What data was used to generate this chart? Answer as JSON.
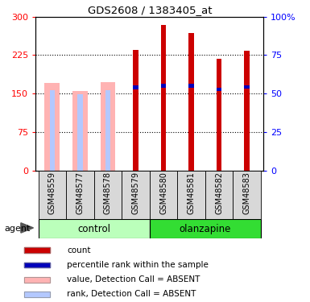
{
  "title": "GDS2608 / 1383405_at",
  "samples": [
    "GSM48559",
    "GSM48577",
    "GSM48578",
    "GSM48579",
    "GSM48580",
    "GSM48581",
    "GSM48582",
    "GSM48583"
  ],
  "value_bars": [
    170,
    155,
    172,
    0,
    0,
    0,
    0,
    0
  ],
  "rank_bars": [
    157,
    149,
    157,
    0,
    0,
    0,
    0,
    0
  ],
  "count_bars": [
    0,
    0,
    0,
    235,
    283,
    268,
    218,
    234
  ],
  "percentile_bars": [
    0,
    0,
    0,
    162,
    165,
    165,
    158,
    163
  ],
  "absent": [
    true,
    true,
    true,
    false,
    false,
    false,
    false,
    false
  ],
  "ylim_left": [
    0,
    300
  ],
  "ylim_right": [
    0,
    100
  ],
  "yticks_left": [
    0,
    75,
    150,
    225,
    300
  ],
  "yticks_right": [
    0,
    25,
    50,
    75,
    100
  ],
  "ytick_labels_left": [
    "0",
    "75",
    "150",
    "225",
    "300"
  ],
  "ytick_labels_right": [
    "0",
    "25",
    "50",
    "75",
    "100%"
  ],
  "bar_width": 0.55,
  "color_count": "#cc0000",
  "color_percentile": "#0000bb",
  "color_value_absent": "#ffb3b3",
  "color_rank_absent": "#b3c8ff",
  "group_colors": [
    "#bbffbb",
    "#bbffbb",
    "#bbffbb",
    "#bbffbb",
    "#33dd33",
    "#33dd33",
    "#33dd33",
    "#33dd33"
  ],
  "group_ctrl_color": "#bbffbb",
  "group_olanz_color": "#33dd33",
  "group_label_control": "control",
  "group_label_olanzapine": "olanzapine",
  "legend_items": [
    {
      "label": "count",
      "color": "#cc0000"
    },
    {
      "label": "percentile rank within the sample",
      "color": "#0000bb"
    },
    {
      "label": "value, Detection Call = ABSENT",
      "color": "#ffb3b3"
    },
    {
      "label": "rank, Detection Call = ABSENT",
      "color": "#b3c8ff"
    }
  ],
  "agent_label": "agent",
  "percentile_bar_height": 7
}
